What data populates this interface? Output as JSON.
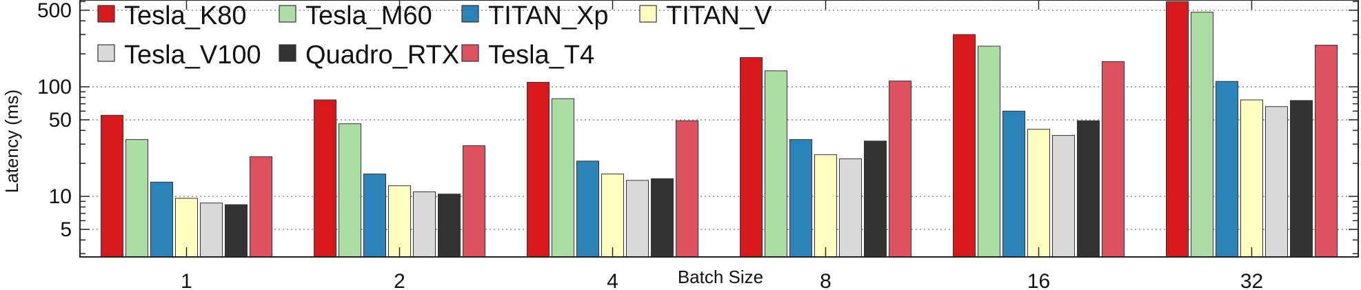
{
  "chart_data": {
    "type": "bar",
    "title": "",
    "xlabel": "Batch Size",
    "ylabel": "Latency (ms)",
    "yscale": "log",
    "ylim": [
      2.8,
      620
    ],
    "yticks": [
      5,
      10,
      50,
      100,
      500
    ],
    "grid": true,
    "legend_position": "top-left",
    "categories": [
      "1",
      "2",
      "4",
      "8",
      "16",
      "32"
    ],
    "series": [
      {
        "name": "Tesla_K80",
        "color": "#d7191c",
        "values": [
          55,
          76,
          110,
          185,
          300,
          600
        ]
      },
      {
        "name": "Tesla_M60",
        "color": "#abdda4",
        "values": [
          33,
          46,
          78,
          140,
          235,
          480
        ]
      },
      {
        "name": "TITAN_Xp",
        "color": "#2b83ba",
        "values": [
          13.5,
          16,
          21,
          33,
          60,
          112
        ]
      },
      {
        "name": "TITAN_V",
        "color": "#ffffbf",
        "values": [
          9.6,
          12.5,
          16,
          24,
          41,
          76
        ]
      },
      {
        "name": "Tesla_V100",
        "color": "#d9d9d9",
        "values": [
          8.7,
          11,
          14,
          22,
          36,
          66
        ]
      },
      {
        "name": "Quadro_RTX",
        "color": "#333333",
        "values": [
          8.4,
          10.5,
          14.5,
          32,
          49,
          75
        ]
      },
      {
        "name": "Tesla_T4",
        "color": "#de525f",
        "values": [
          23,
          29,
          49,
          113,
          170,
          240
        ]
      }
    ]
  }
}
